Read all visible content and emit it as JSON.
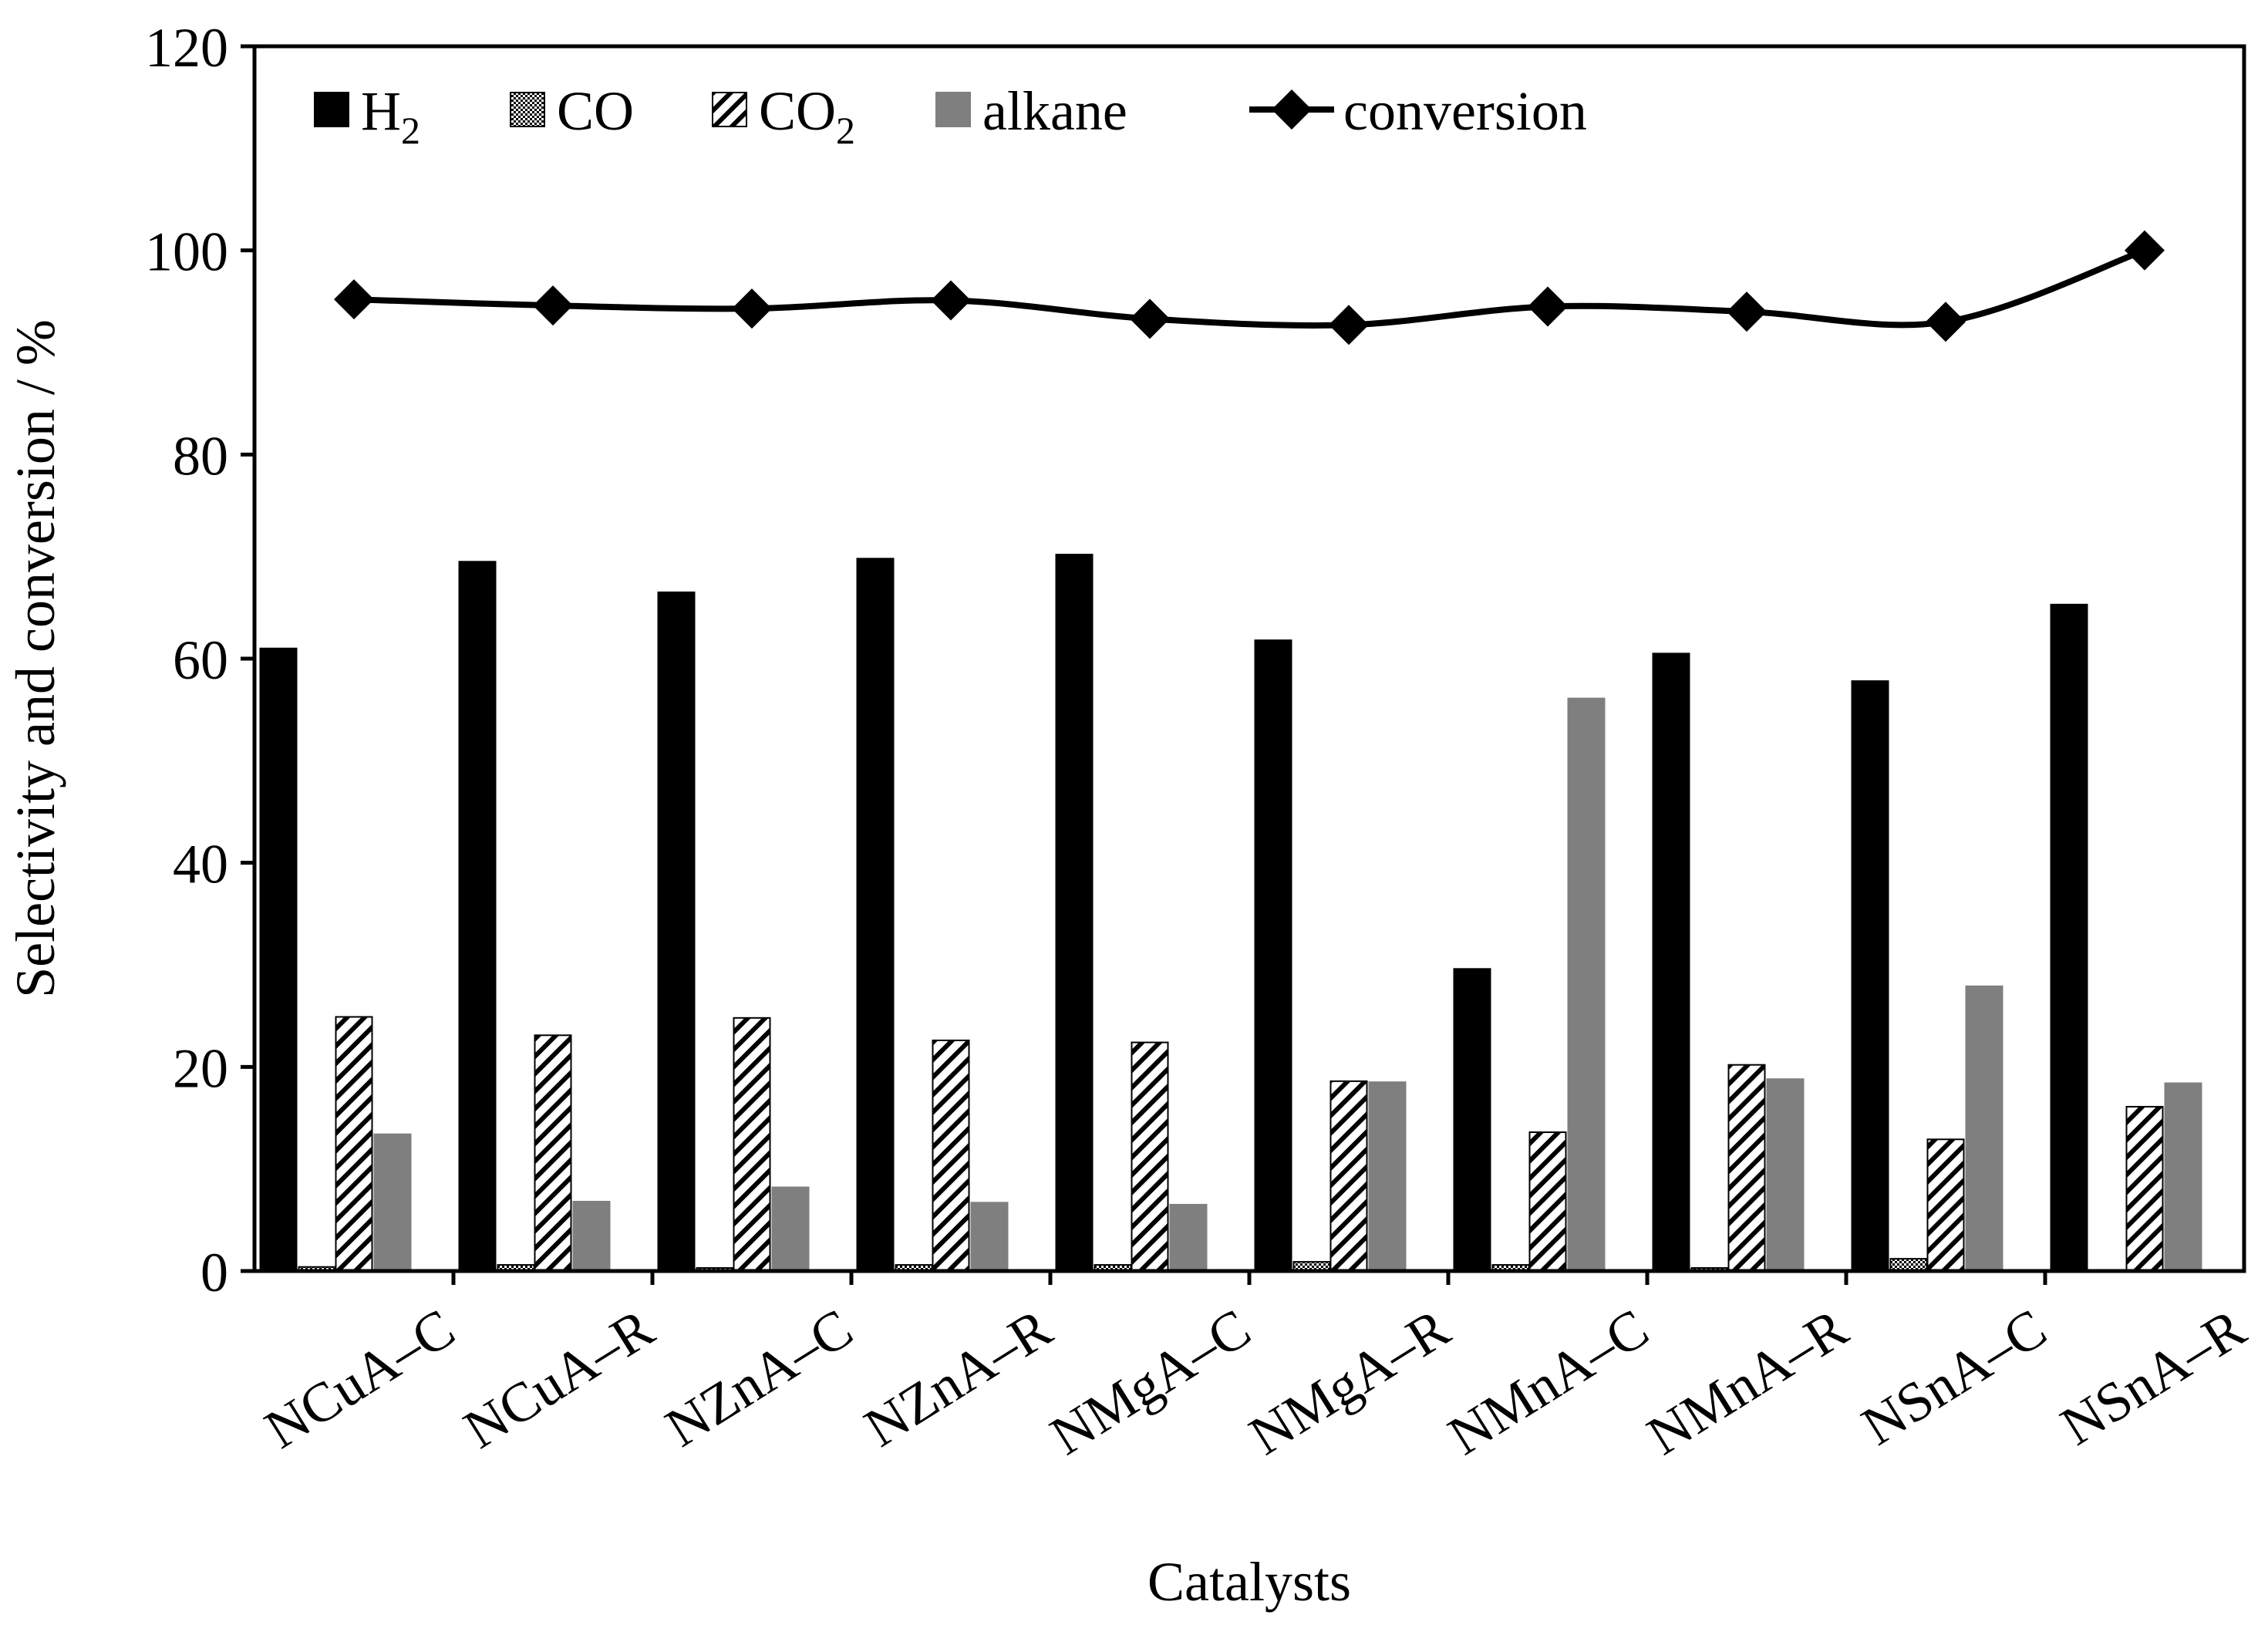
{
  "chart_data": {
    "type": "bar",
    "title": "",
    "xlabel": "Catalysts",
    "ylabel": "Selectivity and conversion / %",
    "ylim": [
      0,
      120
    ],
    "yticks": [
      0,
      20,
      40,
      60,
      80,
      100,
      120
    ],
    "categories": [
      "NCuA–C",
      "NCuA–R",
      "NZnA–C",
      "NZnA–R",
      "NMgA–C",
      "NMgA–R",
      "NMnA–C",
      "NMnA–R",
      "NSnA–C",
      "NSnA–R"
    ],
    "series": [
      {
        "name": "H2",
        "label_main": "H",
        "label_sub": "2",
        "style": "solid-black",
        "color": "#000000",
        "values": [
          61.0,
          69.5,
          66.5,
          69.8,
          70.2,
          61.8,
          29.6,
          60.5,
          57.8,
          65.3
        ]
      },
      {
        "name": "CO",
        "label_main": "CO",
        "label_sub": "",
        "style": "checker",
        "color": "#000000",
        "values": [
          0.4,
          0.6,
          0.3,
          0.6,
          0.6,
          0.9,
          0.6,
          0.3,
          1.2,
          0.0
        ]
      },
      {
        "name": "CO2",
        "label_main": "CO",
        "label_sub": "2",
        "style": "diagonal-hatch",
        "color": "#000000",
        "values": [
          24.9,
          23.1,
          24.8,
          22.6,
          22.4,
          18.6,
          13.6,
          20.2,
          12.9,
          16.1
        ]
      },
      {
        "name": "alkane",
        "label_main": "alkane",
        "label_sub": "",
        "style": "solid-gray",
        "color": "#7f7f7f",
        "values": [
          13.4,
          6.8,
          8.2,
          6.7,
          6.5,
          18.5,
          56.1,
          18.8,
          27.9,
          18.4
        ]
      }
    ],
    "line_series": {
      "name": "conversion",
      "label": "conversion",
      "marker": "diamond",
      "color": "#000000",
      "values": [
        95.2,
        94.6,
        94.3,
        95.1,
        93.3,
        92.7,
        94.5,
        94.0,
        93.0,
        100.0
      ]
    },
    "legend_position": "top-left inside",
    "grid": false
  }
}
